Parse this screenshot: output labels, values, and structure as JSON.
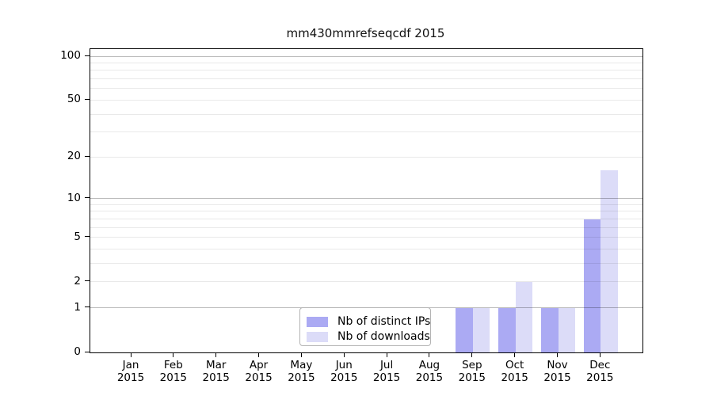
{
  "title": "mm430mmrefseqcdf 2015",
  "chart_data": {
    "type": "bar",
    "title": "mm430mmrefseqcdf 2015",
    "x_months": [
      "Jan",
      "Feb",
      "Mar",
      "Apr",
      "May",
      "Jun",
      "Jul",
      "Aug",
      "Sep",
      "Oct",
      "Nov",
      "Dec"
    ],
    "x_year": "2015",
    "categories": [
      "Jan 2015",
      "Feb 2015",
      "Mar 2015",
      "Apr 2015",
      "May 2015",
      "Jun 2015",
      "Jul 2015",
      "Aug 2015",
      "Sep 2015",
      "Oct 2015",
      "Nov 2015",
      "Dec 2015"
    ],
    "series": [
      {
        "name": "Nb of distinct IPs",
        "color": "#abaaf3",
        "values": [
          0,
          0,
          0,
          0,
          0,
          0,
          0,
          0,
          1,
          1,
          1,
          7
        ]
      },
      {
        "name": "Nb of downloads",
        "color": "#dcdcf8",
        "values": [
          0,
          0,
          0,
          0,
          0,
          0,
          0,
          0,
          1,
          2,
          1,
          16
        ]
      }
    ],
    "yscale": "log1p",
    "ylim": [
      0,
      112
    ],
    "yticks_labeled": [
      0,
      1,
      2,
      5,
      10,
      20,
      50,
      100
    ],
    "yticks_major_grid": [
      1,
      10,
      100
    ],
    "yticks_minor_grid": [
      2,
      3,
      4,
      5,
      6,
      7,
      8,
      9,
      20,
      30,
      40,
      50,
      60,
      70,
      80,
      90
    ],
    "grid": true,
    "legend_position": "lower center",
    "xlabel": "",
    "ylabel": ""
  },
  "legend": {
    "items": [
      {
        "label": "Nb of distinct IPs",
        "color": "#abaaf3"
      },
      {
        "label": "Nb of downloads",
        "color": "#dcdcf8"
      }
    ]
  }
}
